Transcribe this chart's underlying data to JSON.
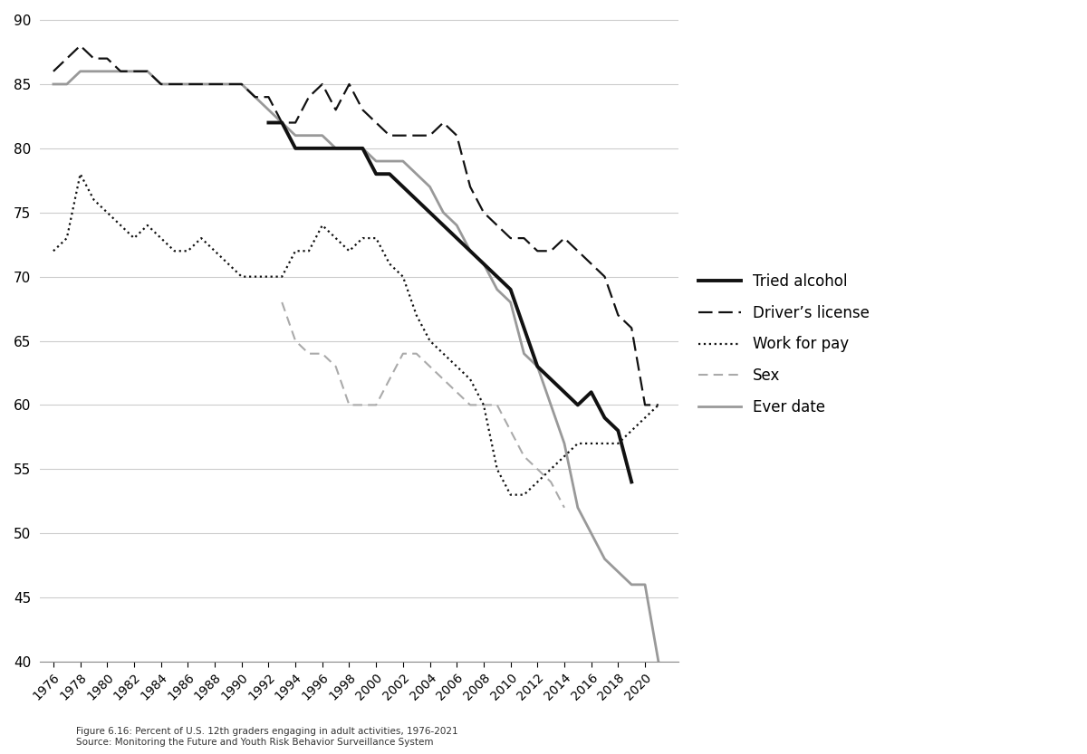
{
  "years": [
    1976,
    1977,
    1978,
    1979,
    1980,
    1981,
    1982,
    1983,
    1984,
    1985,
    1986,
    1987,
    1988,
    1989,
    1990,
    1991,
    1992,
    1993,
    1994,
    1995,
    1996,
    1997,
    1998,
    1999,
    2000,
    2001,
    2002,
    2003,
    2004,
    2005,
    2006,
    2007,
    2008,
    2009,
    2010,
    2011,
    2012,
    2013,
    2014,
    2015,
    2016,
    2017,
    2018,
    2019,
    2020,
    2021
  ],
  "tried_alcohol_years": [
    1992,
    1993,
    1994,
    1995,
    1996,
    1997,
    1998,
    1999,
    2000,
    2001,
    2002,
    2003,
    2004,
    2005,
    2006,
    2007,
    2008,
    2009,
    2010,
    2011,
    2012,
    2013,
    2014,
    2015,
    2016,
    2017,
    2018,
    2019
  ],
  "tried_alcohol_vals": [
    82,
    82,
    80,
    80,
    80,
    80,
    80,
    80,
    78,
    78,
    77,
    76,
    75,
    74,
    73,
    72,
    71,
    70,
    69,
    66,
    63,
    62,
    61,
    60,
    61,
    59,
    58,
    54
  ],
  "drivers_license_years": [
    1976,
    1977,
    1978,
    1979,
    1980,
    1981,
    1982,
    1983,
    1984,
    1985,
    1986,
    1987,
    1988,
    1989,
    1990,
    1991,
    1992,
    1993,
    1994,
    1995,
    1996,
    1997,
    1998,
    1999,
    2000,
    2001,
    2002,
    2003,
    2004,
    2005,
    2006,
    2007,
    2008,
    2009,
    2010,
    2011,
    2012,
    2013,
    2014,
    2015,
    2016,
    2017,
    2018,
    2019,
    2020,
    2021
  ],
  "drivers_license_vals": [
    86,
    87,
    88,
    87,
    87,
    86,
    86,
    86,
    85,
    85,
    85,
    85,
    85,
    85,
    85,
    84,
    84,
    82,
    82,
    84,
    85,
    83,
    85,
    83,
    82,
    81,
    81,
    81,
    81,
    82,
    81,
    77,
    75,
    74,
    73,
    73,
    72,
    72,
    73,
    72,
    71,
    70,
    67,
    66,
    60,
    60
  ],
  "work_for_pay_years": [
    1976,
    1977,
    1978,
    1979,
    1980,
    1981,
    1982,
    1983,
    1984,
    1985,
    1986,
    1987,
    1988,
    1989,
    1990,
    1991,
    1992,
    1993,
    1994,
    1995,
    1996,
    1997,
    1998,
    1999,
    2000,
    2001,
    2002,
    2003,
    2004,
    2005,
    2006,
    2007,
    2008,
    2009,
    2010,
    2011,
    2012,
    2013,
    2014,
    2015,
    2016,
    2017,
    2018,
    2019,
    2020,
    2021
  ],
  "work_for_pay_vals": [
    72,
    73,
    78,
    76,
    75,
    74,
    73,
    74,
    73,
    72,
    72,
    73,
    72,
    71,
    70,
    70,
    70,
    70,
    72,
    72,
    74,
    73,
    72,
    73,
    73,
    71,
    70,
    67,
    65,
    64,
    63,
    62,
    60,
    55,
    53,
    53,
    54,
    55,
    56,
    57,
    57,
    57,
    57,
    58,
    59,
    60
  ],
  "sex_years": [
    1991,
    1992,
    1993,
    1994,
    1995,
    1996,
    1997,
    1998,
    1999,
    2000,
    2001,
    2002,
    2003,
    2004,
    2005,
    2006,
    2007,
    2008,
    2009,
    2010,
    2011,
    2012,
    2013,
    2014,
    2015,
    2016,
    2017,
    2018,
    2019
  ],
  "sex_vals": [
    null,
    null,
    68,
    65,
    64,
    64,
    63,
    60,
    60,
    60,
    62,
    64,
    64,
    63,
    62,
    61,
    60,
    60,
    60,
    58,
    56,
    55,
    54,
    52,
    null,
    null,
    null,
    null,
    null
  ],
  "ever_date_years": [
    1976,
    1977,
    1978,
    1979,
    1980,
    1981,
    1982,
    1983,
    1984,
    1985,
    1986,
    1987,
    1988,
    1989,
    1990,
    1991,
    1992,
    1993,
    1994,
    1995,
    1996,
    1997,
    1998,
    1999,
    2000,
    2001,
    2002,
    2003,
    2004,
    2005,
    2006,
    2007,
    2008,
    2009,
    2010,
    2011,
    2012,
    2013,
    2014,
    2015,
    2016,
    2017,
    2018,
    2019,
    2020,
    2021
  ],
  "ever_date_vals": [
    85,
    85,
    86,
    86,
    86,
    86,
    86,
    86,
    85,
    85,
    85,
    85,
    85,
    85,
    85,
    84,
    83,
    82,
    81,
    81,
    81,
    80,
    80,
    80,
    79,
    79,
    79,
    78,
    77,
    75,
    74,
    72,
    71,
    69,
    68,
    64,
    63,
    60,
    57,
    52,
    50,
    48,
    47,
    46,
    46,
    40
  ],
  "ylim": [
    40,
    90
  ],
  "yticks": [
    40,
    45,
    50,
    55,
    60,
    65,
    70,
    75,
    80,
    85,
    90
  ],
  "xtick_years": [
    1976,
    1978,
    1980,
    1982,
    1984,
    1986,
    1988,
    1990,
    1992,
    1994,
    1996,
    1998,
    2000,
    2002,
    2004,
    2006,
    2008,
    2010,
    2012,
    2014,
    2016,
    2018,
    2020
  ],
  "caption1": "Figure 6.16: Percent of U.S. 12th graders engaging in adult activities, 1976-2021",
  "caption2": "Source: Monitoring the Future and Youth Risk Behavior Surveillance System",
  "legend_labels": [
    "Tried alcohol",
    "Driver’s license",
    "Work for pay",
    "Sex",
    "Ever date"
  ],
  "background_color": "#ffffff"
}
